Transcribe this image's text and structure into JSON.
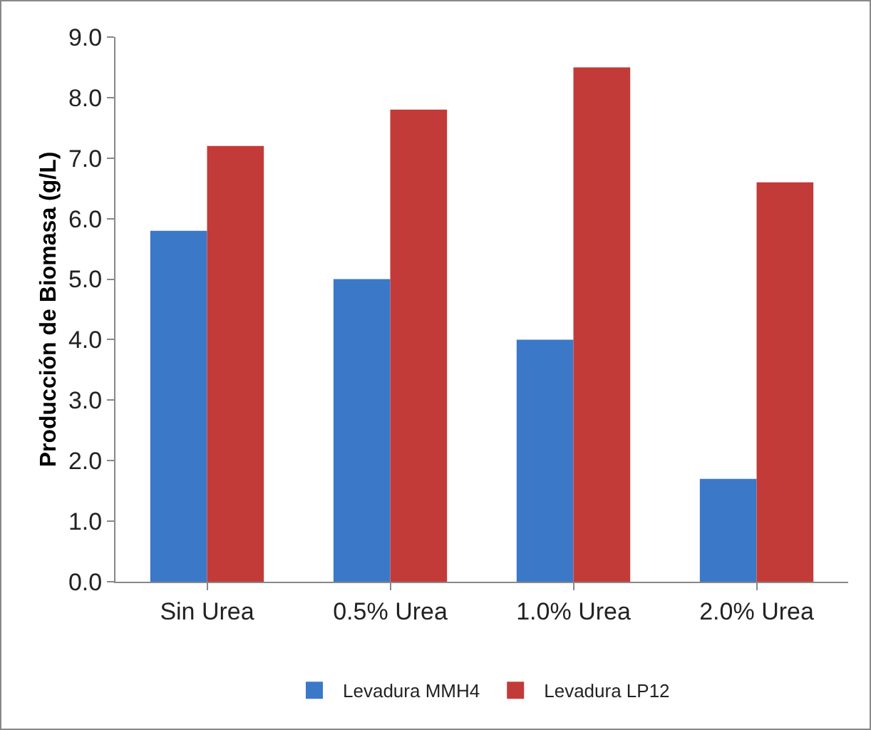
{
  "chart_data": {
    "type": "bar",
    "ylabel": "Producción de Biomasa (g/L)",
    "categories": [
      "Sin Urea",
      "0.5% Urea",
      "1.0% Urea",
      "2.0% Urea"
    ],
    "series": [
      {
        "name": "Levadura MMH4",
        "color": "#3b78c8",
        "values": [
          5.8,
          5.0,
          4.0,
          1.7
        ]
      },
      {
        "name": "Levadura LP12",
        "color": "#c23b38",
        "values": [
          7.2,
          7.8,
          8.5,
          6.6
        ]
      }
    ],
    "ylim": [
      0,
      9
    ],
    "yticks": [
      {
        "value": 0,
        "label": "0.0"
      },
      {
        "value": 1,
        "label": "1.0"
      },
      {
        "value": 2,
        "label": "2.0"
      },
      {
        "value": 3,
        "label": "3.0"
      },
      {
        "value": 4,
        "label": "4.0"
      },
      {
        "value": 5,
        "label": "5.0"
      },
      {
        "value": 6,
        "label": "6.0"
      },
      {
        "value": 7,
        "label": "7.0"
      },
      {
        "value": 8,
        "label": "8.0"
      },
      {
        "value": 9,
        "label": "9.0"
      }
    ],
    "grid": false,
    "legend": "bottom"
  }
}
